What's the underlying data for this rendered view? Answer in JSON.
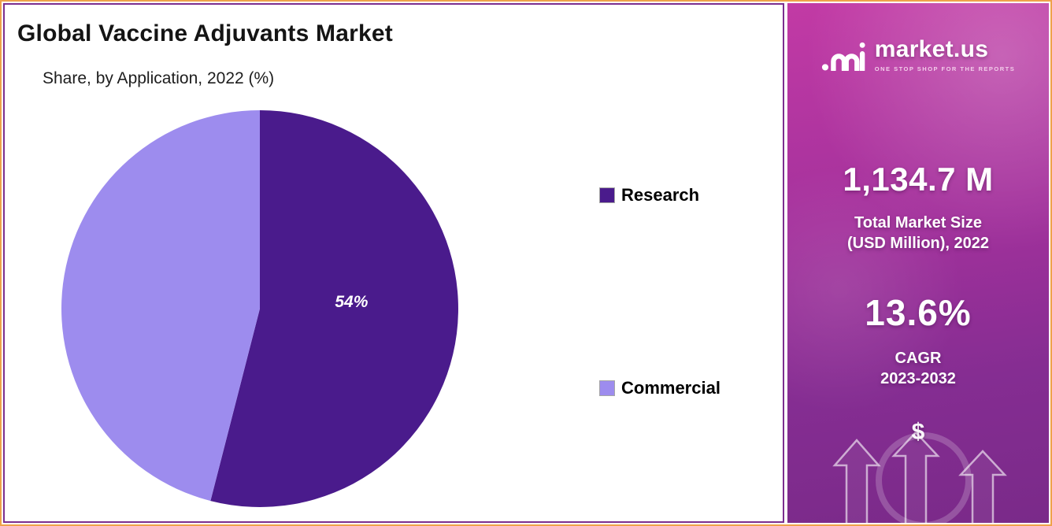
{
  "chart_data": {
    "type": "pie",
    "title": "Global Vaccine Adjuvants Market",
    "subtitle": "Share, by Application, 2022 (%)",
    "labels": [
      "Research",
      "Commercial"
    ],
    "values": [
      54,
      46
    ],
    "colors": [
      "#4a1b8c",
      "#9d8cee"
    ],
    "data_label": "54%",
    "legend_position": "right",
    "start_angle_deg": -90,
    "direction": "clockwise"
  },
  "brand_panel": {
    "brand": "market.us",
    "tagline": "ONE STOP SHOP FOR THE REPORTS",
    "market_size": {
      "value": "1,134.7 M",
      "label_line1": "Total Market Size",
      "label_line2": "(USD Million), 2022"
    },
    "cagr": {
      "value": "13.6%",
      "label_line1": "CAGR",
      "label_line2": "2023-2032"
    },
    "dollar_symbol": "$"
  }
}
